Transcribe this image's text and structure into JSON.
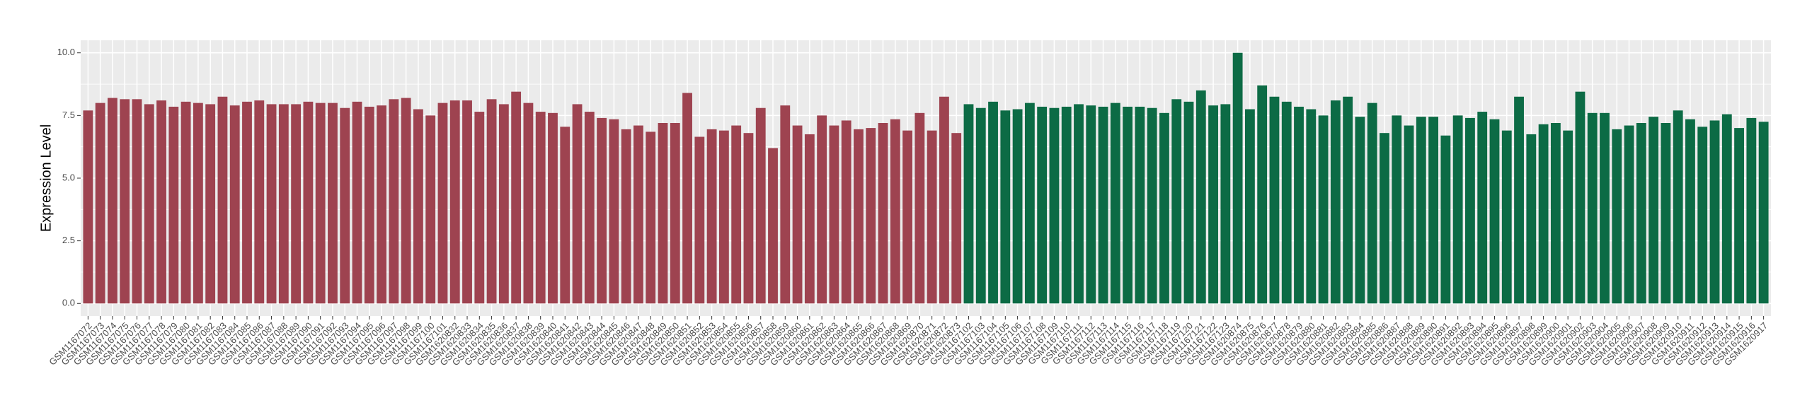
{
  "chart_data": {
    "type": "bar",
    "ylabel": "Expression Level",
    "ylim": [
      -0.5,
      10.5
    ],
    "yticks": [
      {
        "value": 0,
        "label": "0.0"
      },
      2.5,
      {
        "value": 5,
        "label": "5.0"
      },
      7.5,
      {
        "value": 10,
        "label": "10.0"
      }
    ],
    "grid": true,
    "series": [
      {
        "color": "#9e4350",
        "categories": [
          "GSM1167072",
          "GSM1167073",
          "GSM1167074",
          "GSM1167075",
          "GSM1167076",
          "GSM1167077",
          "GSM1167078",
          "GSM1167079",
          "GSM1167080",
          "GSM1167081",
          "GSM1167082",
          "GSM1167083",
          "GSM1167084",
          "GSM1167085",
          "GSM1167086",
          "GSM1167087",
          "GSM1167088",
          "GSM1167089",
          "GSM1167090",
          "GSM1167091",
          "GSM1167092",
          "GSM1167093",
          "GSM1167094",
          "GSM1167095",
          "GSM1167096",
          "GSM1167097",
          "GSM1167098",
          "GSM1167099",
          "GSM1167100",
          "GSM1167101",
          "GSM1620832",
          "GSM1620833",
          "GSM1620834",
          "GSM1620835",
          "GSM1620836",
          "GSM1620837",
          "GSM1620838",
          "GSM1620839",
          "GSM1620840",
          "GSM1620841",
          "GSM1620842",
          "GSM1620843",
          "GSM1620844",
          "GSM1620845",
          "GSM1620846",
          "GSM1620847",
          "GSM1620848",
          "GSM1620849",
          "GSM1620850",
          "GSM1620851",
          "GSM1620852",
          "GSM1620853",
          "GSM1620854",
          "GSM1620855",
          "GSM1620856",
          "GSM1620857",
          "GSM1620858",
          "GSM1620859",
          "GSM1620860",
          "GSM1620861",
          "GSM1620862",
          "GSM1620863",
          "GSM1620864",
          "GSM1620865",
          "GSM1620866",
          "GSM1620867",
          "GSM1620868",
          "GSM1620869",
          "GSM1620870",
          "GSM1620871",
          "GSM1620872",
          "GSM1620873"
        ],
        "values": [
          7.7,
          8.0,
          8.2,
          8.15,
          8.15,
          7.95,
          8.1,
          7.85,
          8.05,
          8.0,
          7.95,
          8.25,
          7.9,
          8.05,
          8.1,
          7.95,
          7.95,
          7.95,
          8.05,
          8.0,
          8.0,
          7.8,
          8.05,
          7.85,
          7.9,
          8.15,
          8.2,
          7.75,
          7.5,
          8.0,
          8.1,
          8.1,
          7.65,
          8.15,
          7.95,
          8.45,
          8.0,
          7.65,
          7.6,
          7.05,
          7.95,
          7.65,
          7.4,
          7.35,
          6.95,
          7.1,
          6.85,
          7.2,
          7.2,
          8.4,
          6.65,
          6.95,
          6.9,
          7.1,
          6.8,
          7.8,
          6.2,
          7.9,
          7.1,
          6.75,
          7.5,
          7.1,
          7.3,
          6.95,
          7.0,
          7.2,
          7.35,
          6.9,
          7.6,
          6.9,
          8.25,
          6.8
        ]
      },
      {
        "color": "#0c6b45",
        "categories": [
          "GSM1167102",
          "GSM1167103",
          "GSM1167104",
          "GSM1167105",
          "GSM1167106",
          "GSM1167107",
          "GSM1167108",
          "GSM1167109",
          "GSM1167110",
          "GSM1167111",
          "GSM1167112",
          "GSM1167113",
          "GSM1167114",
          "GSM1167115",
          "GSM1167116",
          "GSM1167117",
          "GSM1167118",
          "GSM1167119",
          "GSM1167120",
          "GSM1167121",
          "GSM1167122",
          "GSM1167123",
          "GSM1620874",
          "GSM1620875",
          "GSM1620876",
          "GSM1620877",
          "GSM1620878",
          "GSM1620879",
          "GSM1620880",
          "GSM1620881",
          "GSM1620882",
          "GSM1620883",
          "GSM1620884",
          "GSM1620885",
          "GSM1620886",
          "GSM1620887",
          "GSM1620888",
          "GSM1620889",
          "GSM1620890",
          "GSM1620891",
          "GSM1620892",
          "GSM1620893",
          "GSM1620894",
          "GSM1620895",
          "GSM1620896",
          "GSM1620897",
          "GSM1620898",
          "GSM1620899",
          "GSM1620900",
          "GSM1620901",
          "GSM1620902",
          "GSM1620903",
          "GSM1620904",
          "GSM1620905",
          "GSM1620906",
          "GSM1620907",
          "GSM1620908",
          "GSM1620909",
          "GSM1620910",
          "GSM1620911",
          "GSM1620912",
          "GSM1620913",
          "GSM1620914",
          "GSM1620915",
          "GSM1620916",
          "GSM1620917"
        ],
        "values": [
          7.95,
          7.8,
          8.05,
          7.7,
          7.75,
          8.0,
          7.85,
          7.8,
          7.85,
          7.95,
          7.9,
          7.85,
          8.0,
          7.85,
          7.85,
          7.8,
          7.6,
          8.15,
          8.05,
          8.5,
          7.9,
          7.95,
          10.0,
          7.75,
          8.7,
          8.25,
          8.05,
          7.85,
          7.75,
          7.5,
          8.1,
          8.25,
          7.45,
          8.0,
          6.8,
          7.5,
          7.1,
          7.45,
          7.45,
          6.7,
          7.5,
          7.4,
          7.65,
          7.35,
          6.9,
          8.25,
          6.75,
          7.15,
          7.2,
          6.9,
          8.45,
          7.6,
          7.6,
          6.95,
          7.1,
          7.2,
          7.45,
          7.2,
          7.7,
          7.35,
          7.05,
          7.3,
          7.55,
          7.0,
          7.4,
          7.25
        ]
      }
    ]
  }
}
